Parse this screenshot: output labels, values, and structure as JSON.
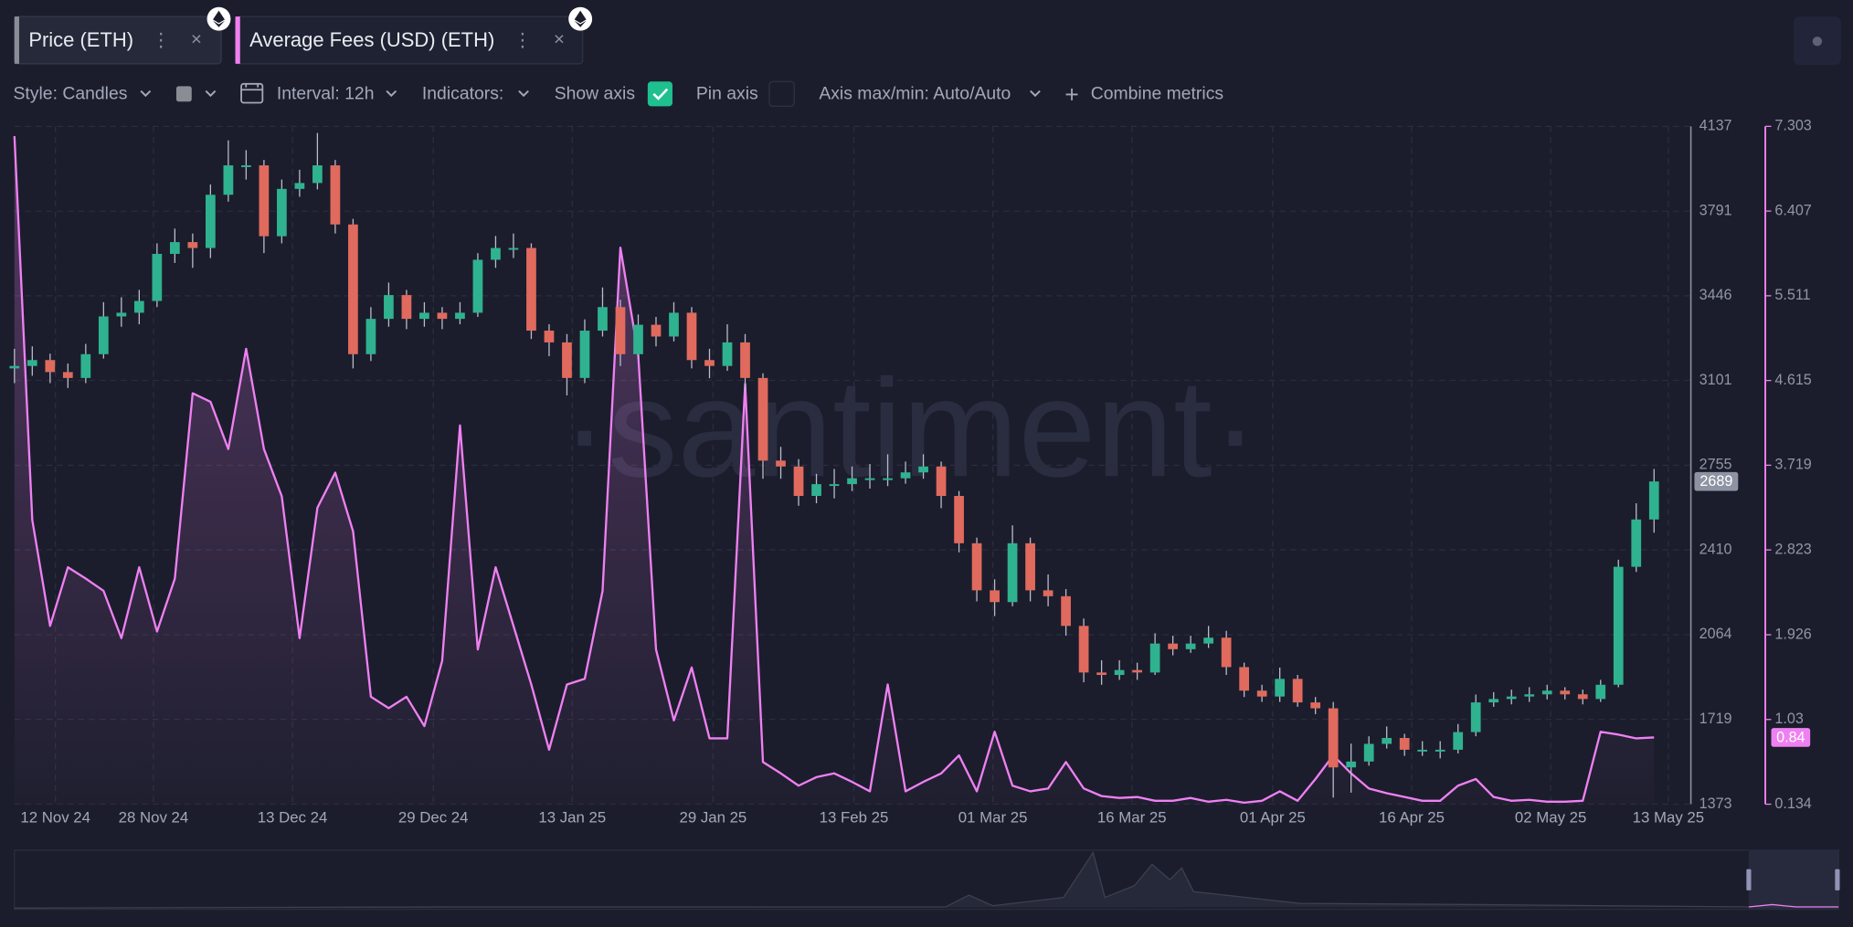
{
  "toolbar": {
    "style": "Style: Candles",
    "interval": "Interval: 12h",
    "indicators": "Indicators:",
    "show_axis": "Show axis",
    "pin_axis": "Pin axis",
    "axis_range": "Axis max/min: Auto/Auto",
    "combine": "Combine metrics"
  },
  "watermark": "·santiment·",
  "chart_data": {
    "type": "candlestick",
    "xlim": [
      0,
      94
    ],
    "xticks": [
      {
        "value": 2.3,
        "label": "12 Nov 24"
      },
      {
        "value": 7.8,
        "label": "28 Nov 24"
      },
      {
        "value": 15.6,
        "label": "13 Dec 24"
      },
      {
        "value": 23.5,
        "label": "29 Dec 24"
      },
      {
        "value": 31.3,
        "label": "13 Jan 25"
      },
      {
        "value": 39.2,
        "label": "29 Jan 25"
      },
      {
        "value": 47.1,
        "label": "13 Feb 25"
      },
      {
        "value": 54.9,
        "label": "01 Mar 25"
      },
      {
        "value": 62.7,
        "label": "16 Mar 25"
      },
      {
        "value": 70.6,
        "label": "01 Apr 25"
      },
      {
        "value": 78.4,
        "label": "16 Apr 25"
      },
      {
        "value": 86.2,
        "label": "02 May 25"
      },
      {
        "value": 92.8,
        "label": "13 May 25"
      }
    ],
    "ylim": [
      1373,
      4137
    ],
    "yticks": [
      1373,
      1719,
      2064,
      2410,
      2755,
      3101,
      3446,
      3791,
      4137
    ],
    "y2lim": [
      0.134,
      7.303
    ],
    "y2ticks": [
      0.134,
      1.03,
      1.926,
      2.823,
      3.719,
      4.615,
      5.511,
      6.407,
      7.303
    ],
    "grid": true,
    "series": [
      {
        "name": "Price (ETH)",
        "type": "candlestick",
        "up_color": "#2fb28f",
        "down_color": "#e06a5d",
        "axis_color": "#8e93a3",
        "values": [
          [
            3150,
            3230,
            3090,
            3160
          ],
          [
            3160,
            3240,
            3120,
            3184
          ],
          [
            3184,
            3210,
            3090,
            3135
          ],
          [
            3135,
            3170,
            3070,
            3111
          ],
          [
            3111,
            3250,
            3090,
            3208
          ],
          [
            3208,
            3420,
            3190,
            3362
          ],
          [
            3362,
            3440,
            3320,
            3377
          ],
          [
            3377,
            3470,
            3330,
            3425
          ],
          [
            3425,
            3660,
            3400,
            3617
          ],
          [
            3617,
            3720,
            3580,
            3665
          ],
          [
            3665,
            3700,
            3560,
            3641
          ],
          [
            3641,
            3900,
            3600,
            3858
          ],
          [
            3858,
            4080,
            3830,
            3978
          ],
          [
            3978,
            4040,
            3920,
            3978
          ],
          [
            3978,
            4000,
            3620,
            3689
          ],
          [
            3689,
            3920,
            3660,
            3882
          ],
          [
            3882,
            3960,
            3850,
            3906
          ],
          [
            3906,
            4110,
            3880,
            3978
          ],
          [
            3978,
            4000,
            3700,
            3737
          ],
          [
            3737,
            3760,
            3150,
            3208
          ],
          [
            3208,
            3400,
            3180,
            3352
          ],
          [
            3352,
            3500,
            3320,
            3449
          ],
          [
            3449,
            3470,
            3310,
            3352
          ],
          [
            3352,
            3420,
            3320,
            3377
          ],
          [
            3377,
            3400,
            3310,
            3352
          ],
          [
            3352,
            3420,
            3330,
            3377
          ],
          [
            3377,
            3620,
            3360,
            3593
          ],
          [
            3593,
            3690,
            3560,
            3641
          ],
          [
            3641,
            3700,
            3600,
            3641
          ],
          [
            3641,
            3660,
            3270,
            3304
          ],
          [
            3304,
            3330,
            3200,
            3256
          ],
          [
            3256,
            3290,
            3040,
            3111
          ],
          [
            3111,
            3350,
            3090,
            3304
          ],
          [
            3304,
            3480,
            3280,
            3400
          ],
          [
            3400,
            3430,
            3160,
            3208
          ],
          [
            3208,
            3370,
            3190,
            3328
          ],
          [
            3328,
            3360,
            3240,
            3280
          ],
          [
            3280,
            3420,
            3260,
            3377
          ],
          [
            3377,
            3400,
            3150,
            3184
          ],
          [
            3184,
            3230,
            3110,
            3160
          ],
          [
            3160,
            3330,
            3140,
            3256
          ],
          [
            3256,
            3290,
            3060,
            3111
          ],
          [
            3111,
            3130,
            2700,
            2774
          ],
          [
            2774,
            2830,
            2700,
            2750
          ],
          [
            2750,
            2780,
            2590,
            2630
          ],
          [
            2630,
            2720,
            2600,
            2678
          ],
          [
            2678,
            2740,
            2620,
            2678
          ],
          [
            2678,
            2750,
            2650,
            2702
          ],
          [
            2702,
            2760,
            2660,
            2702
          ],
          [
            2702,
            2800,
            2670,
            2702
          ],
          [
            2702,
            2770,
            2680,
            2726
          ],
          [
            2726,
            2800,
            2700,
            2750
          ],
          [
            2750,
            2770,
            2580,
            2630
          ],
          [
            2630,
            2650,
            2400,
            2437
          ],
          [
            2437,
            2460,
            2200,
            2245
          ],
          [
            2245,
            2290,
            2140,
            2197
          ],
          [
            2197,
            2510,
            2180,
            2437
          ],
          [
            2437,
            2460,
            2200,
            2245
          ],
          [
            2245,
            2310,
            2180,
            2221
          ],
          [
            2221,
            2250,
            2060,
            2100
          ],
          [
            2100,
            2130,
            1870,
            1910
          ],
          [
            1910,
            1960,
            1860,
            1900
          ],
          [
            1900,
            1960,
            1880,
            1920
          ],
          [
            1920,
            1950,
            1880,
            1910
          ],
          [
            1910,
            2070,
            1900,
            2028
          ],
          [
            2028,
            2060,
            1980,
            2005
          ],
          [
            2005,
            2060,
            1990,
            2028
          ],
          [
            2028,
            2100,
            2010,
            2052
          ],
          [
            2052,
            2080,
            1900,
            1932
          ],
          [
            1932,
            1950,
            1810,
            1836
          ],
          [
            1836,
            1860,
            1790,
            1812
          ],
          [
            1812,
            1930,
            1790,
            1884
          ],
          [
            1884,
            1900,
            1770,
            1788
          ],
          [
            1788,
            1810,
            1740,
            1764
          ],
          [
            1764,
            1790,
            1400,
            1523
          ],
          [
            1523,
            1620,
            1420,
            1547
          ],
          [
            1547,
            1650,
            1530,
            1619
          ],
          [
            1619,
            1690,
            1600,
            1643
          ],
          [
            1643,
            1660,
            1570,
            1595
          ],
          [
            1595,
            1630,
            1570,
            1595
          ],
          [
            1595,
            1630,
            1560,
            1595
          ],
          [
            1595,
            1700,
            1580,
            1667
          ],
          [
            1667,
            1820,
            1650,
            1788
          ],
          [
            1788,
            1830,
            1770,
            1802
          ],
          [
            1802,
            1840,
            1780,
            1812
          ],
          [
            1812,
            1850,
            1790,
            1821
          ],
          [
            1821,
            1860,
            1800,
            1836
          ],
          [
            1836,
            1850,
            1800,
            1821
          ],
          [
            1821,
            1840,
            1780,
            1802
          ],
          [
            1802,
            1880,
            1790,
            1860
          ],
          [
            1860,
            2370,
            1850,
            2341
          ],
          [
            2341,
            2600,
            2320,
            2534
          ],
          [
            2534,
            2740,
            2480,
            2689
          ]
        ]
      },
      {
        "name": "Average Fees (USD) (ETH)",
        "type": "line",
        "axis": "y2",
        "color": "#ef80f2",
        "values": [
          7.2,
          3.14,
          2.02,
          2.64,
          2.52,
          2.39,
          1.89,
          2.64,
          1.96,
          2.52,
          4.48,
          4.39,
          3.89,
          4.95,
          3.89,
          3.39,
          1.89,
          3.27,
          3.64,
          3.02,
          1.27,
          1.15,
          1.27,
          0.96,
          1.65,
          4.14,
          1.77,
          2.64,
          2.02,
          1.4,
          0.71,
          1.4,
          1.46,
          2.39,
          6.02,
          4.89,
          1.77,
          1.02,
          1.58,
          0.83,
          0.83,
          4.58,
          0.58,
          0.46,
          0.33,
          0.42,
          0.46,
          0.37,
          0.27,
          1.4,
          0.27,
          0.37,
          0.46,
          0.65,
          0.27,
          0.9,
          0.33,
          0.27,
          0.3,
          0.58,
          0.3,
          0.22,
          0.2,
          0.21,
          0.17,
          0.17,
          0.2,
          0.16,
          0.18,
          0.15,
          0.17,
          0.27,
          0.17,
          0.4,
          0.65,
          0.46,
          0.3,
          0.25,
          0.21,
          0.17,
          0.17,
          0.33,
          0.4,
          0.21,
          0.17,
          0.18,
          0.16,
          0.16,
          0.17,
          0.9,
          0.87,
          0.83,
          0.84
        ]
      }
    ]
  }
}
